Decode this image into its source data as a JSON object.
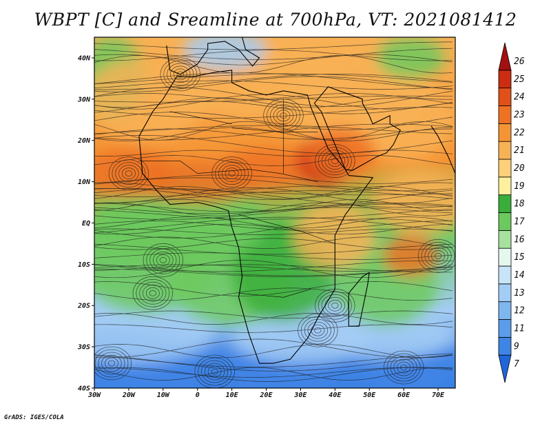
{
  "title": "WBPT [C] and Sreamline at 700hPa, VT: 2021081412",
  "credit": "GrADS: IGES/COLA",
  "axes": {
    "lon_ticks": [
      "30W",
      "20W",
      "10W",
      "0",
      "10E",
      "20E",
      "30E",
      "40E",
      "50E",
      "60E",
      "70E"
    ],
    "lat_ticks": [
      "40N",
      "30N",
      "20N",
      "10N",
      "EQ",
      "10S",
      "20S",
      "30S",
      "40S"
    ],
    "lon_range": [
      -30,
      75
    ],
    "lat_range": [
      -40,
      45
    ]
  },
  "colorbar": {
    "labels": [
      "7",
      "9",
      "11",
      "12",
      "13",
      "14",
      "15",
      "16",
      "17",
      "18",
      "19",
      "20",
      "21",
      "22",
      "23",
      "24",
      "25",
      "26"
    ],
    "colors": [
      "#1f66d9",
      "#3f85e6",
      "#5b9ceb",
      "#7eb6f0",
      "#a4cdf5",
      "#c8e4f8",
      "#e6f7ee",
      "#a8e0a0",
      "#6cc95e",
      "#3aae3a",
      "#fff09e",
      "#ffd07a",
      "#f8b256",
      "#f59434",
      "#ee7224",
      "#e2501a",
      "#cc2d12",
      "#a31010"
    ]
  },
  "map_colors": {
    "cold": "#3f85e6",
    "cool": "#a4cdf5",
    "green": "#6cc95e",
    "dark_green": "#3aae3a",
    "tan": "#f8b256",
    "hot": "#ee7224",
    "very_hot": "#cc2d12"
  }
}
